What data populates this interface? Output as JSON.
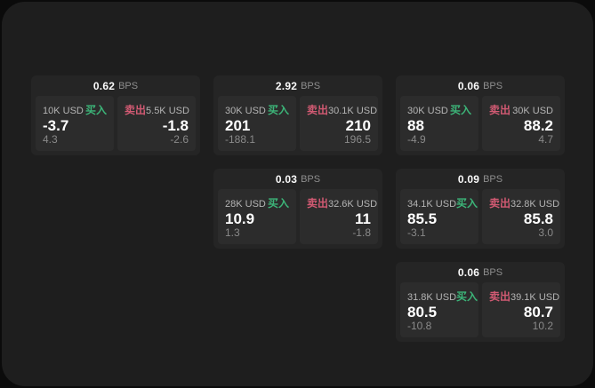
{
  "colors": {
    "page_bg": "#0b0b0b",
    "panel_bg": "#1e1e1e",
    "card_bg": "#252525",
    "tile_bg": "#2c2c2c",
    "buy_green": "#3cb478",
    "sell_red": "#d25a73"
  },
  "labels": {
    "bps_unit": "BPS",
    "buy": "买入",
    "sell": "卖出"
  },
  "cards": [
    {
      "bps": "0.62",
      "row": 1,
      "col": 1,
      "buy": {
        "amount": "10K USD",
        "value": "-3.7",
        "delta": "4.3"
      },
      "sell": {
        "amount": "5.5K USD",
        "value": "-1.8",
        "delta": "-2.6"
      }
    },
    {
      "bps": "2.92",
      "row": 1,
      "col": 2,
      "buy": {
        "amount": "30K USD",
        "value": "201",
        "delta": "-188.1"
      },
      "sell": {
        "amount": "30.1K USD",
        "value": "210",
        "delta": "196.5"
      }
    },
    {
      "bps": "0.06",
      "row": 1,
      "col": 3,
      "buy": {
        "amount": "30K USD",
        "value": "88",
        "delta": "-4.9"
      },
      "sell": {
        "amount": "30K USD",
        "value": "88.2",
        "delta": "4.7"
      }
    },
    {
      "bps": "0.03",
      "row": 2,
      "col": 2,
      "buy": {
        "amount": "28K USD",
        "value": "10.9",
        "delta": "1.3"
      },
      "sell": {
        "amount": "32.6K USD",
        "value": "11",
        "delta": "-1.8"
      }
    },
    {
      "bps": "0.09",
      "row": 2,
      "col": 3,
      "buy": {
        "amount": "34.1K USD",
        "value": "85.5",
        "delta": "-3.1"
      },
      "sell": {
        "amount": "32.8K USD",
        "value": "85.8",
        "delta": "3.0"
      }
    },
    {
      "bps": "0.06",
      "row": 3,
      "col": 3,
      "buy": {
        "amount": "31.8K USD",
        "value": "80.5",
        "delta": "-10.8"
      },
      "sell": {
        "amount": "39.1K USD",
        "value": "80.7",
        "delta": "10.2"
      }
    }
  ]
}
